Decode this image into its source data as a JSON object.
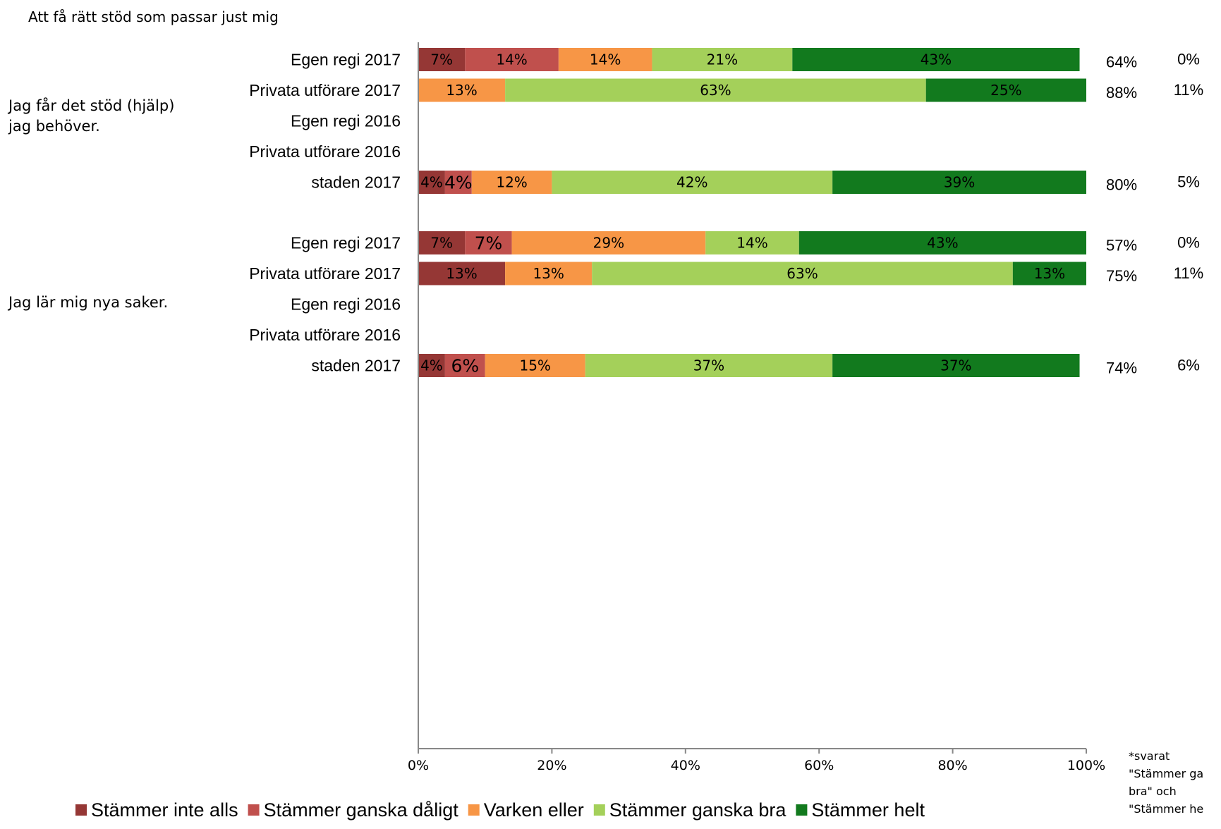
{
  "chart_data": {
    "type": "bar",
    "orientation": "horizontal-stacked-100",
    "title": "Att få rätt stöd som passar just mig",
    "groups": [
      {
        "label": "Jag får det stöd (hjälp) jag behöver.",
        "label_lines": [
          "Jag får det stöd (hjälp)",
          "jag behöver."
        ],
        "rows": [
          {
            "label": "Egen regi 2017",
            "values": [
              7,
              14,
              14,
              21,
              43
            ],
            "positive": "64%",
            "other": "0%"
          },
          {
            "label": "Privata utförare 2017",
            "values": [
              0,
              0,
              13,
              63,
              25
            ],
            "positive": "88%",
            "other": "11%"
          },
          {
            "label": "Egen regi 2016",
            "values": [],
            "positive": "",
            "other": ""
          },
          {
            "label": "Privata utförare 2016",
            "values": [],
            "positive": "",
            "other": ""
          },
          {
            "label": "staden 2017",
            "values": [
              4,
              4,
              12,
              42,
              39
            ],
            "positive": "80%",
            "other": "5%"
          }
        ]
      },
      {
        "label": "Jag lär mig nya saker.",
        "label_lines": [
          "Jag lär mig nya saker."
        ],
        "rows": [
          {
            "label": "Egen regi 2017",
            "values": [
              7,
              7,
              29,
              14,
              43
            ],
            "positive": "57%",
            "other": "0%"
          },
          {
            "label": "Privata utförare 2017",
            "values": [
              13,
              0,
              13,
              63,
              13
            ],
            "positive": "75%",
            "other": "11%"
          },
          {
            "label": "Egen regi 2016",
            "values": [],
            "positive": "",
            "other": ""
          },
          {
            "label": "Privata utförare 2016",
            "values": [],
            "positive": "",
            "other": ""
          },
          {
            "label": "staden 2017",
            "values": [
              4,
              6,
              15,
              37,
              37
            ],
            "positive": "74%",
            "other": "6%"
          }
        ]
      }
    ],
    "series": [
      {
        "name": "Stämmer inte alls",
        "color": "#953735"
      },
      {
        "name": "Stämmer ganska dåligt",
        "color": "#c0504d"
      },
      {
        "name": "Varken eller",
        "color": "#f79646"
      },
      {
        "name": "Stämmer ganska bra",
        "color": "#a4d05a"
      },
      {
        "name": "Stämmer helt",
        "color": "#127a1e"
      }
    ],
    "label_text_color": "#000000",
    "x_ticks": [
      "0%",
      "20%",
      "40%",
      "60%",
      "80%",
      "100%"
    ],
    "xlim": [
      0,
      100
    ],
    "legend_position": "bottom",
    "footnote": [
      "*svarat",
      "\"Stämmer ga",
      "bra\" och",
      "\"Stämmer he"
    ]
  }
}
